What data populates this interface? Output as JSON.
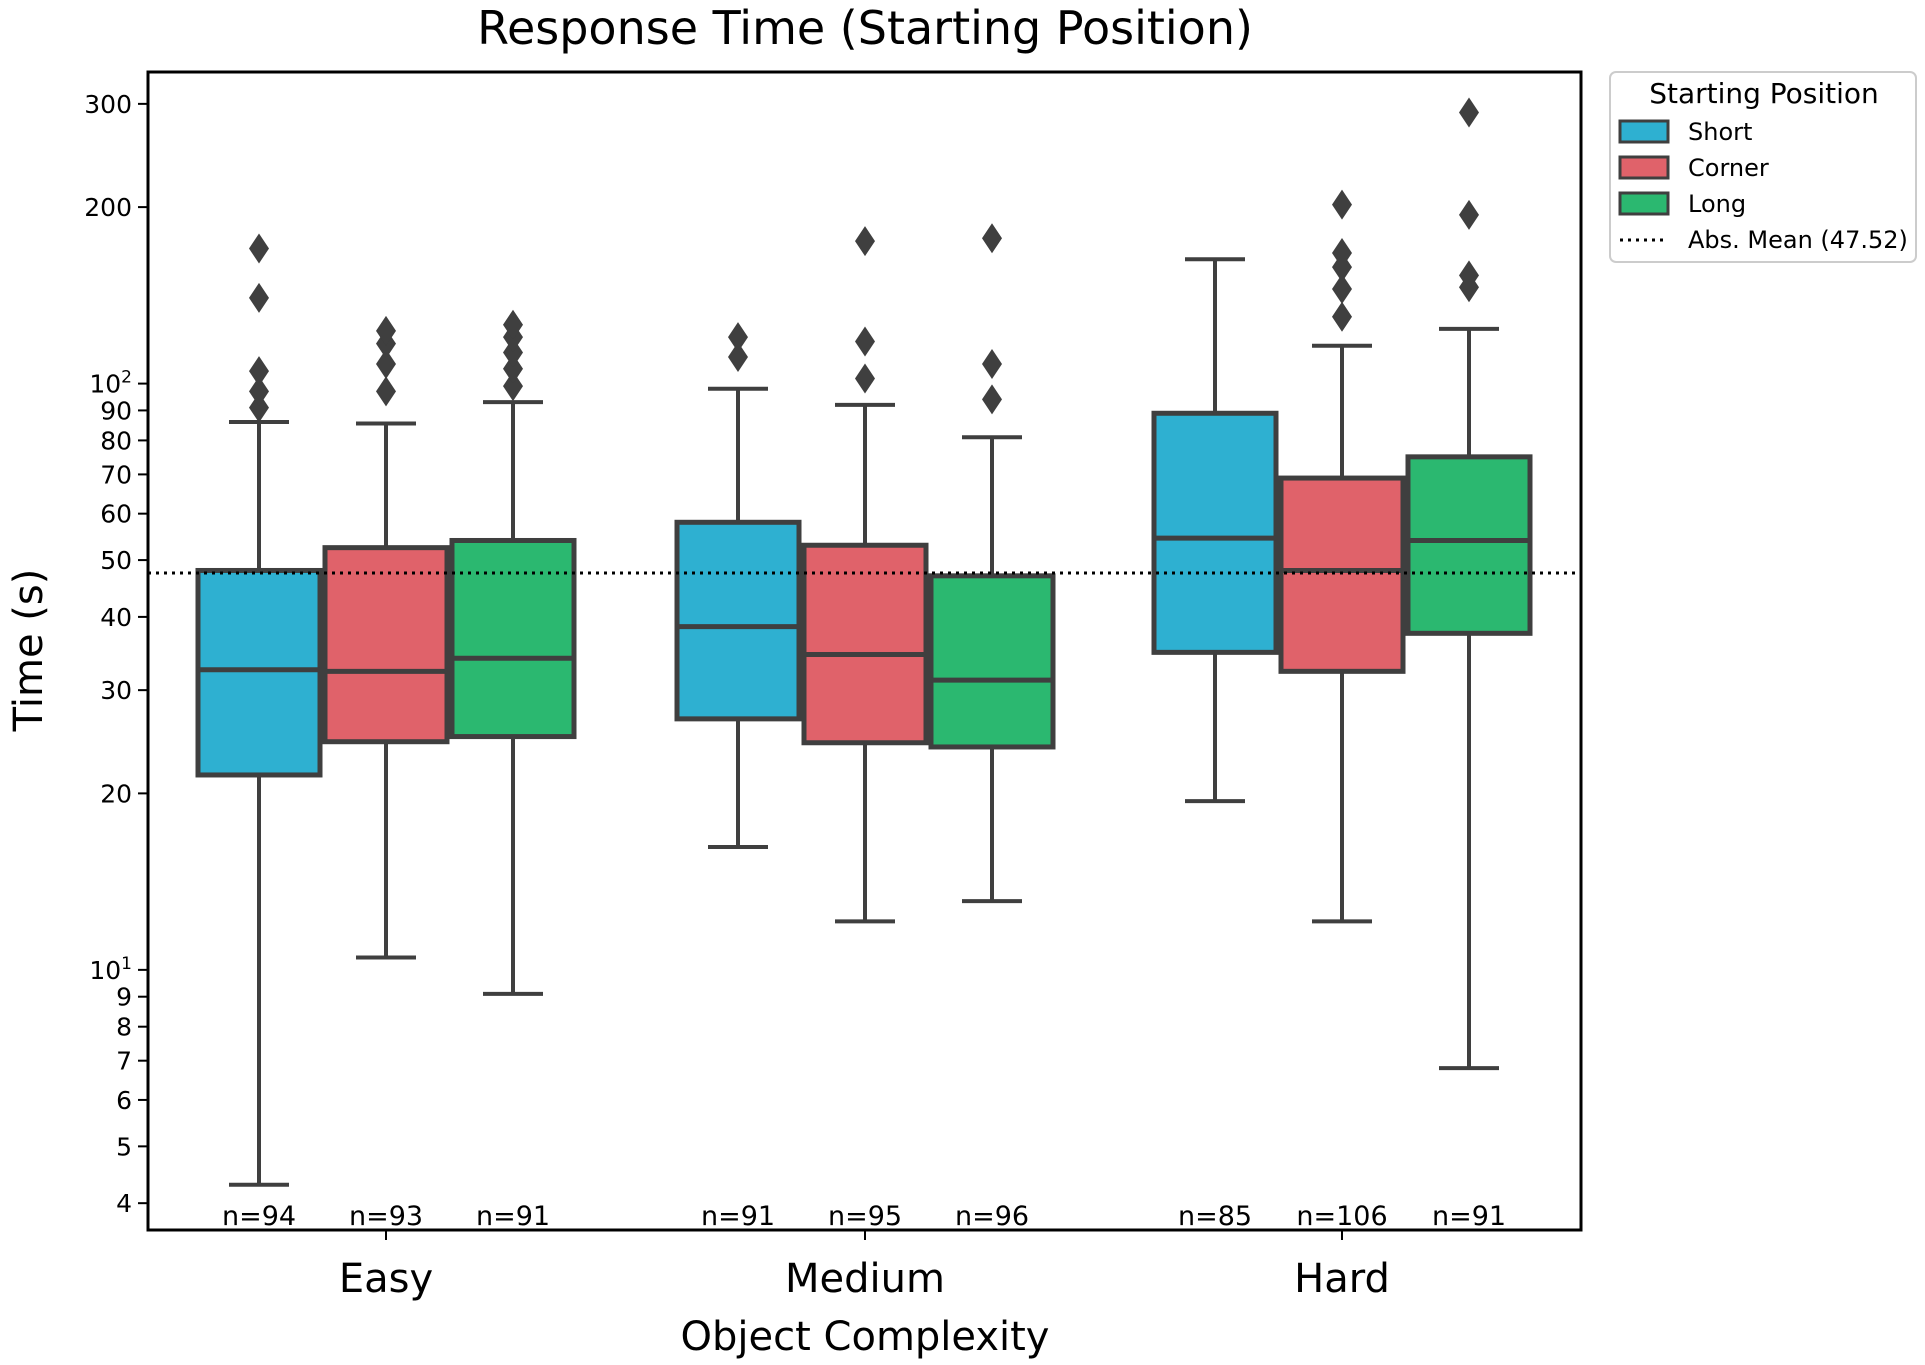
{
  "chart_data": {
    "type": "box",
    "title": "Response Time (Starting Position)",
    "xlabel": "Object Complexity",
    "ylabel": "Time (s)",
    "yscale": "log",
    "ylim": [
      3.6,
      340
    ],
    "grid": false,
    "categories": [
      "Easy",
      "Medium",
      "Hard"
    ],
    "y_ticks": [
      {
        "value": 4,
        "label": "4"
      },
      {
        "value": 5,
        "label": "5"
      },
      {
        "value": 6,
        "label": "6"
      },
      {
        "value": 7,
        "label": "7"
      },
      {
        "value": 8,
        "label": "8"
      },
      {
        "value": 9,
        "label": "9"
      },
      {
        "value": 10,
        "base": "10",
        "exp": "1"
      },
      {
        "value": 20,
        "label": "20"
      },
      {
        "value": 30,
        "label": "30"
      },
      {
        "value": 40,
        "label": "40"
      },
      {
        "value": 50,
        "label": "50"
      },
      {
        "value": 60,
        "label": "60"
      },
      {
        "value": 70,
        "label": "70"
      },
      {
        "value": 80,
        "label": "80"
      },
      {
        "value": 90,
        "label": "90"
      },
      {
        "value": 100,
        "base": "10",
        "exp": "2"
      },
      {
        "value": 200,
        "label": "200"
      },
      {
        "value": 300,
        "label": "300"
      }
    ],
    "legend": {
      "title": "Starting Position",
      "position": "outside-top-right",
      "entries": [
        {
          "label": "Short",
          "color": "#2eb0d1"
        },
        {
          "label": "Corner",
          "color": "#e0626a"
        },
        {
          "label": "Long",
          "color": "#2bb870"
        },
        {
          "label": "Abs. Mean (47.52)",
          "style": "dotted"
        }
      ]
    },
    "reference_line": {
      "label": "Abs. Mean (47.52)",
      "value": 47.52
    },
    "series": [
      {
        "name": "Short",
        "color": "#2eb0d1",
        "boxes": [
          {
            "category": "Easy",
            "whisker_low": 4.3,
            "q1": 21.5,
            "median": 32.5,
            "q3": 48,
            "whisker_high": 86,
            "outliers": [
              91,
              97,
              105,
              140,
              170
            ],
            "n_label": "n=94"
          },
          {
            "category": "Medium",
            "whisker_low": 16.2,
            "q1": 26.8,
            "median": 38.5,
            "q3": 58,
            "whisker_high": 98,
            "outliers": [
              111,
              120
            ],
            "n_label": "n=91"
          },
          {
            "category": "Hard",
            "whisker_low": 19.4,
            "q1": 34.8,
            "median": 54.5,
            "q3": 89,
            "whisker_high": 163,
            "outliers": [],
            "n_label": "n=85"
          }
        ]
      },
      {
        "name": "Corner",
        "color": "#e0626a",
        "boxes": [
          {
            "category": "Easy",
            "whisker_low": 10.5,
            "q1": 24.5,
            "median": 32.3,
            "q3": 52.5,
            "whisker_high": 85.5,
            "outliers": [
              97,
              108,
              117,
              123
            ],
            "n_label": "n=93"
          },
          {
            "category": "Medium",
            "whisker_low": 12.1,
            "q1": 24.4,
            "median": 34.5,
            "q3": 53,
            "whisker_high": 92,
            "outliers": [
              102,
              118,
              175
            ],
            "n_label": "n=95"
          },
          {
            "category": "Hard",
            "whisker_low": 12.1,
            "q1": 32.3,
            "median": 48,
            "q3": 69,
            "whisker_high": 116,
            "outliers": [
              130,
              145,
              158,
              167,
              202
            ],
            "n_label": "n=106"
          }
        ]
      },
      {
        "name": "Long",
        "color": "#2bb870",
        "boxes": [
          {
            "category": "Easy",
            "whisker_low": 9.1,
            "q1": 25,
            "median": 34,
            "q3": 54,
            "whisker_high": 93,
            "outliers": [
              99,
              106,
              113,
              120,
              126
            ],
            "n_label": "n=91"
          },
          {
            "category": "Medium",
            "whisker_low": 13.1,
            "q1": 24,
            "median": 31.2,
            "q3": 47,
            "whisker_high": 81,
            "outliers": [
              94,
              108,
              177
            ],
            "n_label": "n=96"
          },
          {
            "category": "Hard",
            "whisker_low": 6.8,
            "q1": 37.5,
            "median": 54,
            "q3": 75,
            "whisker_high": 124,
            "outliers": [
              146,
              153,
              194,
              290
            ],
            "n_label": "n=91"
          }
        ]
      }
    ]
  }
}
